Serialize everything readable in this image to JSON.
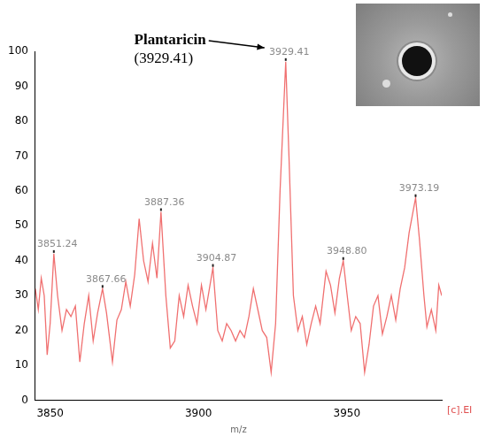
{
  "chart_data": {
    "type": "line",
    "color": "#f07070",
    "x_label": "m/z",
    "x": [
      3845,
      3846,
      3847,
      3848,
      3849,
      3850,
      3851.24,
      3852.5,
      3854,
      3855.5,
      3857,
      3858.5,
      3860,
      3861.5,
      3863,
      3864.5,
      3866,
      3867.66,
      3869,
      3871,
      3872.5,
      3874,
      3875.5,
      3877,
      3878.5,
      3880,
      3881.5,
      3883,
      3884.5,
      3886,
      3887.36,
      3889,
      3890.5,
      3892,
      3893.5,
      3895,
      3896.5,
      3898,
      3899.5,
      3901,
      3902.5,
      3904.87,
      3906.5,
      3908,
      3909.5,
      3911,
      3912.5,
      3914,
      3915.5,
      3917,
      3918.5,
      3920,
      3921.5,
      3923,
      3924.5,
      3926,
      3927.5,
      3929.41,
      3930.5,
      3932,
      3933.5,
      3935,
      3936.5,
      3938,
      3939.5,
      3941,
      3943,
      3944.5,
      3946,
      3947.5,
      3948.8,
      3950,
      3951.5,
      3953,
      3954.5,
      3956,
      3957.5,
      3959,
      3960.5,
      3962,
      3963.5,
      3965,
      3966.5,
      3968,
      3969.5,
      3971,
      3973.19,
      3974.5,
      3976,
      3977,
      3978.5,
      3980,
      3981,
      3982
    ],
    "values": [
      32,
      26,
      35,
      30,
      13,
      22,
      42,
      30,
      20,
      26,
      24,
      27,
      11,
      22,
      30,
      17,
      25,
      32,
      25,
      11,
      23,
      26,
      34,
      27,
      36,
      52,
      40,
      34,
      45,
      35,
      54,
      30,
      15,
      17,
      30,
      24,
      33,
      27,
      22,
      33,
      26,
      38,
      20,
      17,
      22,
      20,
      17,
      20,
      18,
      24,
      32,
      26,
      20,
      18,
      8,
      22,
      60,
      97,
      70,
      30,
      20,
      24,
      16,
      22,
      27,
      22,
      37,
      33,
      25,
      35,
      40,
      31,
      20,
      24,
      22,
      8,
      16,
      27,
      30,
      19,
      24,
      30,
      23,
      32,
      38,
      48,
      58,
      46,
      30,
      21,
      26,
      20,
      33,
      30
    ],
    "xlim": [
      3845,
      3982
    ],
    "xticks": [
      3850,
      3900,
      3950
    ],
    "ylim": [
      0,
      100
    ],
    "yticks": [
      0,
      10,
      20,
      30,
      40,
      50,
      60,
      70,
      80,
      90,
      100
    ],
    "grid": false,
    "peak_labels": [
      {
        "text": "3851.24",
        "x": 3851.24,
        "y": 42
      },
      {
        "text": "3867.66",
        "x": 3867.66,
        "y": 32
      },
      {
        "text": "3887.36",
        "x": 3887.36,
        "y": 54
      },
      {
        "text": "3904.87",
        "x": 3904.87,
        "y": 38
      },
      {
        "text": "3929.41",
        "x": 3929.41,
        "y": 97
      },
      {
        "text": "3948.80",
        "x": 3948.8,
        "y": 40
      },
      {
        "text": "3973.19",
        "x": 3973.19,
        "y": 58
      }
    ],
    "annotation": {
      "text": "Plantaricin",
      "subtext": "(3929.41)",
      "x": 3929.41
    },
    "corner_text": "[c].EI"
  }
}
